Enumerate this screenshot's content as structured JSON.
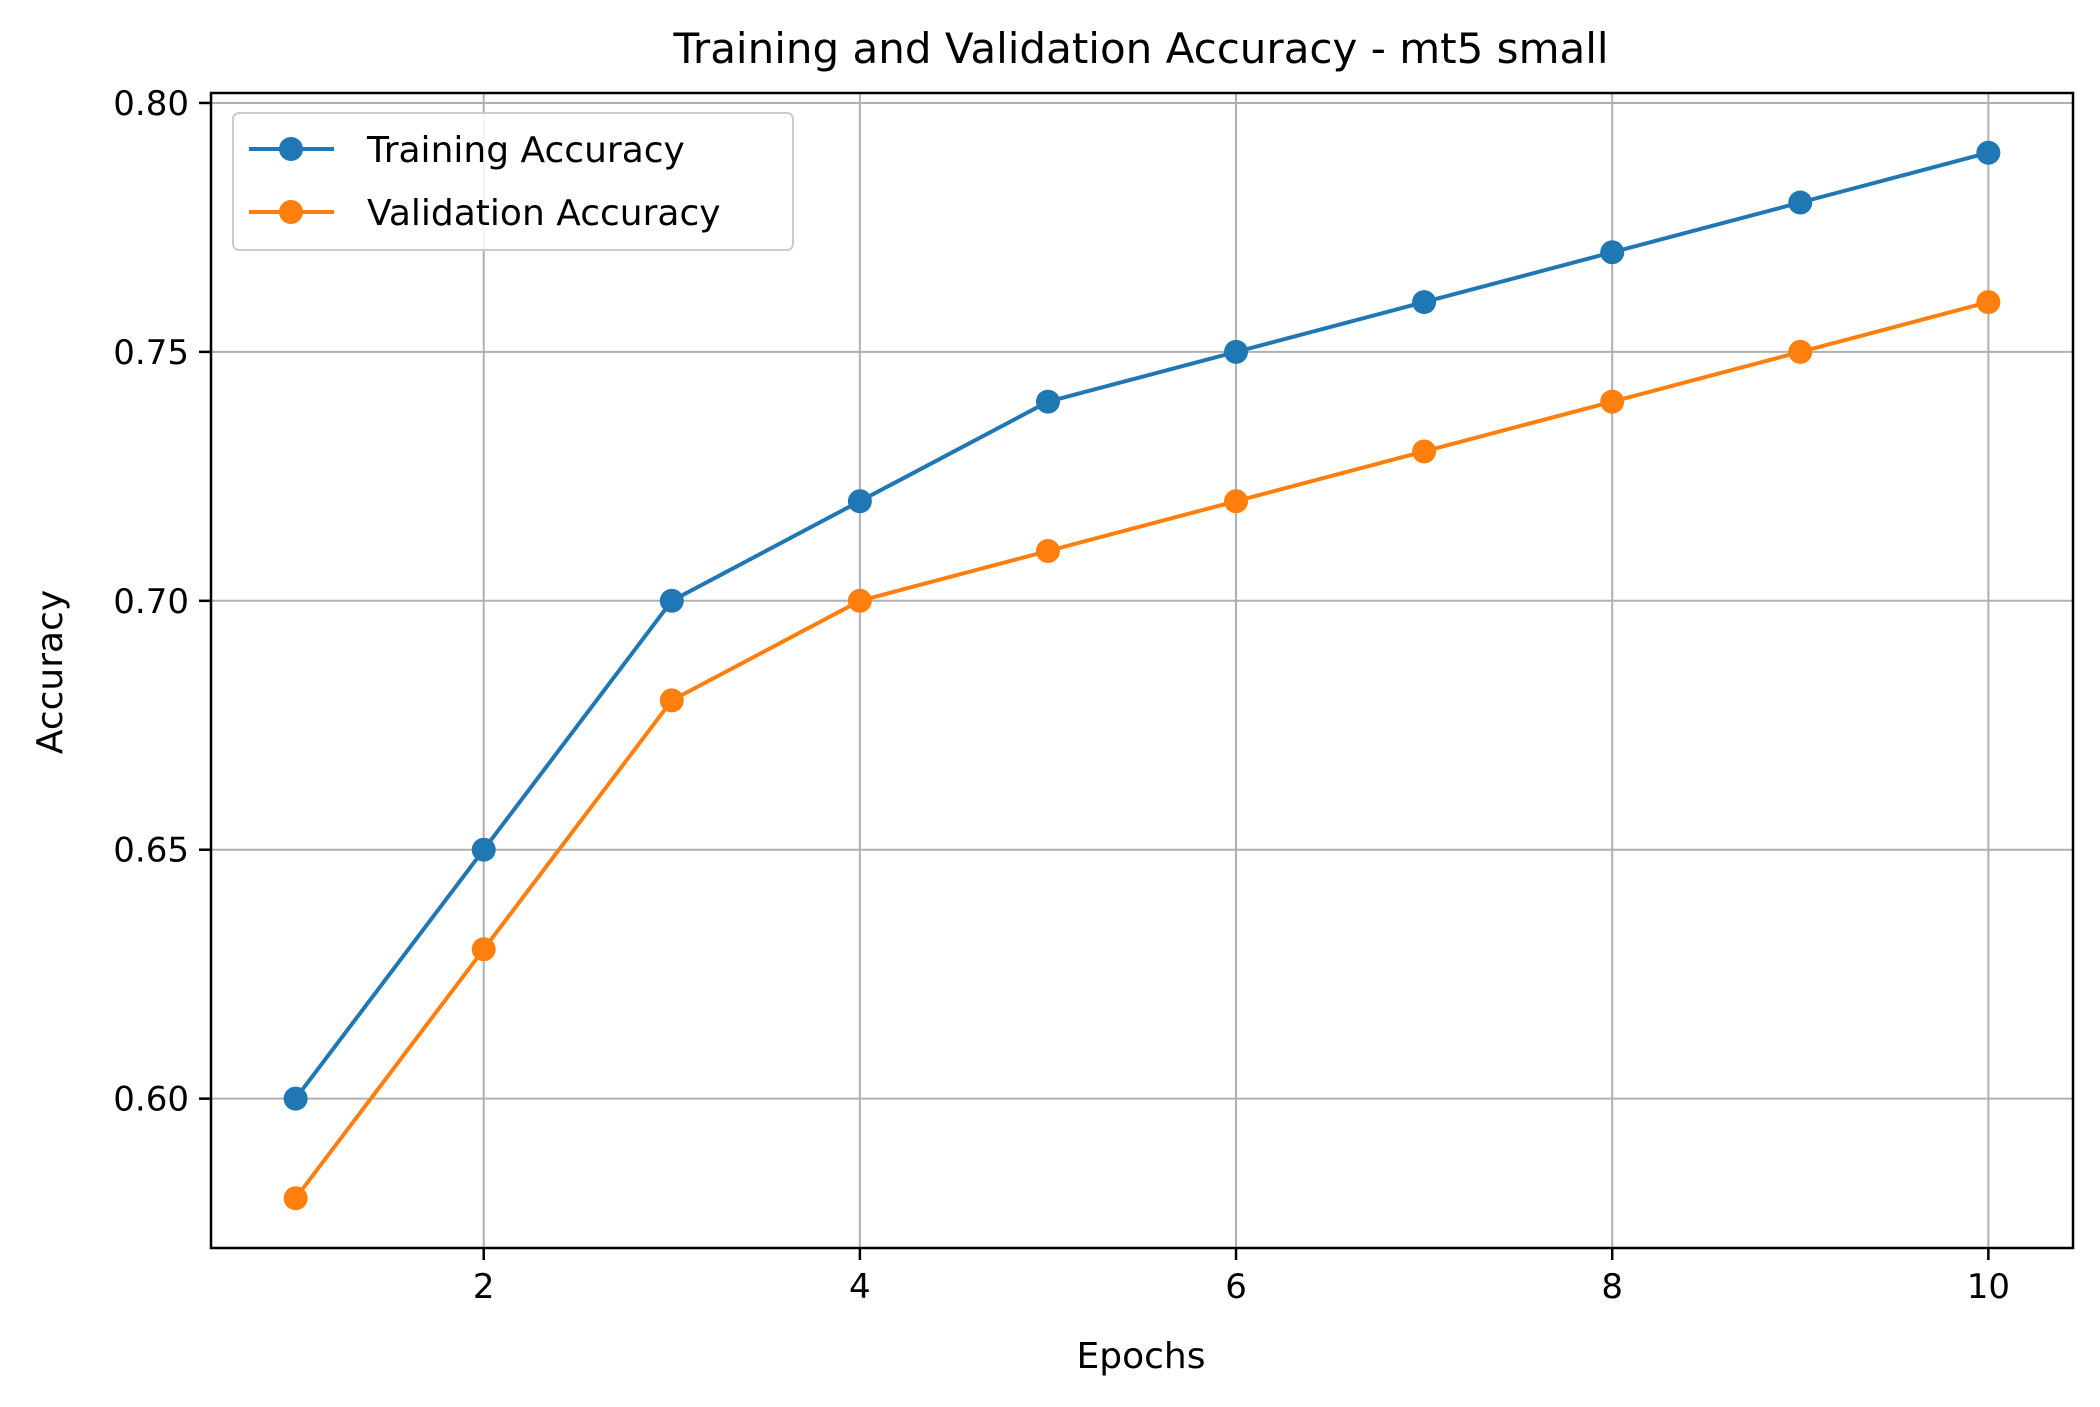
{
  "chart_data": {
    "type": "line",
    "title": "Training and Validation Accuracy - mt5 small",
    "xlabel": "Epochs",
    "ylabel": "Accuracy",
    "x": [
      1,
      2,
      3,
      4,
      5,
      6,
      7,
      8,
      9,
      10
    ],
    "xlim": [
      0.55,
      10.45
    ],
    "ylim": [
      0.57,
      0.802
    ],
    "xticks": [
      2,
      4,
      6,
      8,
      10
    ],
    "xtick_labels": [
      "2",
      "4",
      "6",
      "8",
      "10"
    ],
    "yticks": [
      0.6,
      0.65,
      0.7,
      0.75,
      0.8
    ],
    "ytick_labels": [
      "0.60",
      "0.65",
      "0.70",
      "0.75",
      "0.80"
    ],
    "grid": true,
    "legend_position": "upper-left",
    "series": [
      {
        "name": "Training Accuracy",
        "color": "#1f77b4",
        "marker": "circle",
        "values": [
          0.6,
          0.65,
          0.7,
          0.72,
          0.74,
          0.75,
          0.76,
          0.77,
          0.78,
          0.79
        ]
      },
      {
        "name": "Validation Accuracy",
        "color": "#ff7f0e",
        "marker": "circle",
        "values": [
          0.58,
          0.63,
          0.68,
          0.7,
          0.71,
          0.72,
          0.73,
          0.74,
          0.75,
          0.76
        ]
      }
    ]
  }
}
